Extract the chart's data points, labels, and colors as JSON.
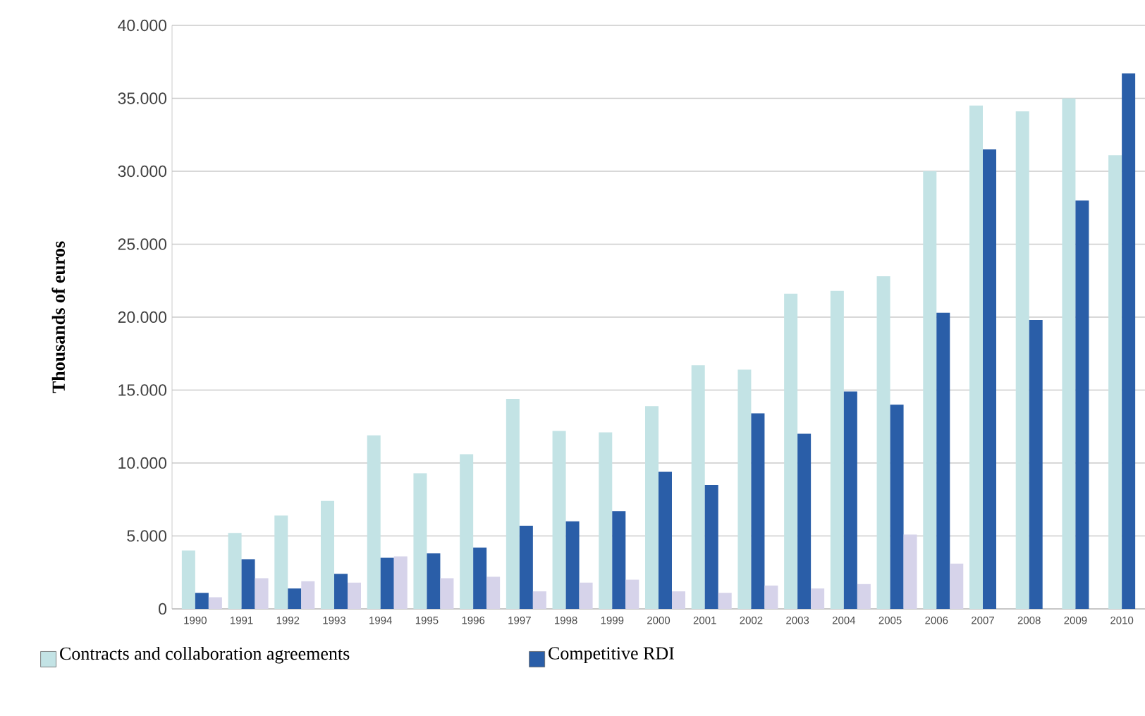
{
  "chart_data": {
    "type": "bar",
    "ylabel": "Thousands of euros",
    "categories": [
      "1990",
      "1991",
      "1992",
      "1993",
      "1994",
      "1995",
      "1996",
      "1997",
      "1998",
      "1999",
      "2000",
      "2001",
      "2002",
      "2003",
      "2004",
      "2005",
      "2006",
      "2007",
      "2008",
      "2009",
      "2010"
    ],
    "series": [
      {
        "name": "Contracts and collaboration agreements",
        "color": "#c3e3e5",
        "values": [
          4000,
          5200,
          6400,
          7400,
          11900,
          9300,
          10600,
          14400,
          12200,
          12100,
          13900,
          16700,
          16400,
          21600,
          21800,
          22800,
          30000,
          34500,
          34100,
          35000,
          31100
        ]
      },
      {
        "name": "Competitive RDI",
        "color": "#2a5ea8",
        "values": [
          1100,
          3400,
          1400,
          2400,
          3500,
          3800,
          4200,
          5700,
          6000,
          6700,
          9400,
          8500,
          13400,
          12000,
          14900,
          14000,
          20300,
          31500,
          19800,
          28000,
          36700
        ]
      },
      {
        "color": "#d6d3ea",
        "values": [
          800,
          2100,
          1900,
          1800,
          3600,
          2100,
          2200,
          1200,
          1800,
          2000,
          1200,
          1100,
          1600,
          1400,
          1700,
          5100,
          3100,
          null,
          null,
          null,
          null
        ]
      }
    ],
    "ylim": [
      0,
      40000
    ],
    "yticks": [
      {
        "value": 0,
        "label": "0"
      },
      {
        "value": 5000,
        "label": "5.000"
      },
      {
        "value": 10000,
        "label": "10.000"
      },
      {
        "value": 15000,
        "label": "15.000"
      },
      {
        "value": 20000,
        "label": "20.000"
      },
      {
        "value": 25000,
        "label": "25.000"
      },
      {
        "value": 30000,
        "label": "30.000"
      },
      {
        "value": 35000,
        "label": "35.000"
      },
      {
        "value": 40000,
        "label": "40.000"
      }
    ],
    "grid": "y",
    "legend": "bottom"
  }
}
